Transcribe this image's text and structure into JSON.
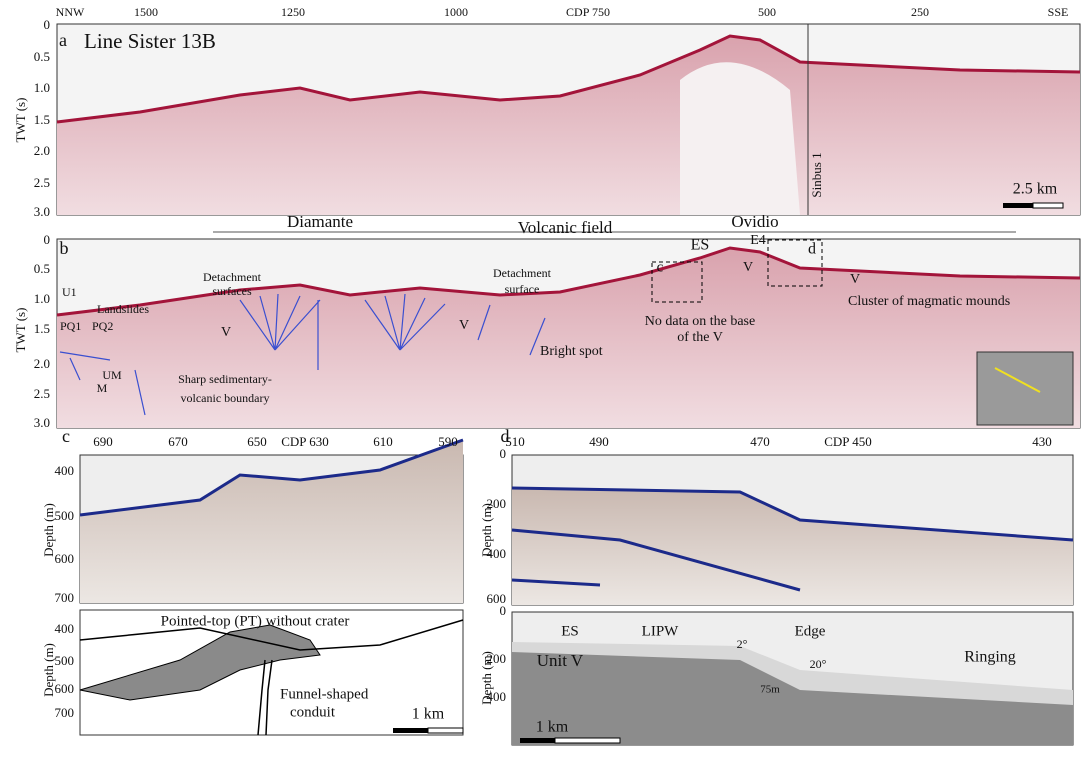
{
  "panel_a": {
    "label": "a",
    "title": "Line Sister 13B",
    "x_labels": [
      "NNW",
      "1500",
      "1250",
      "1000",
      "CDP 750",
      "500",
      "250",
      "SSE"
    ],
    "y_label": "TWT (s)",
    "y_ticks": [
      "0",
      "0.5",
      "1.0",
      "1.5",
      "2.0",
      "2.5",
      "3.0"
    ],
    "well": "Sinbus 1",
    "scale": "2.5 km"
  },
  "zones": {
    "left": "Diamante",
    "center": "Volcanic field",
    "right": "Ovidio"
  },
  "panel_b": {
    "label": "b",
    "y_label": "TWT (s)",
    "y_ticks": [
      "0",
      "0.5",
      "1.0",
      "1.5",
      "2.0",
      "2.5",
      "3.0"
    ],
    "annotations": [
      "ES",
      "E4",
      "V",
      "c",
      "d",
      "V",
      "Cluster of magmatic mounds",
      "Detachment",
      "surfaces",
      "Landslides",
      "U1",
      "PQ1",
      "PQ2",
      "V",
      "Detachment",
      "surface",
      "V",
      "No data on the base",
      "of the V",
      "Bright spot",
      "UM",
      "M",
      "Sharp sedimentary-",
      "volcanic boundary"
    ]
  },
  "panel_c": {
    "label": "c",
    "x_labels": [
      "690",
      "670",
      "650",
      "CDP 630",
      "610",
      "590"
    ],
    "y_label": "Depth (m)",
    "seismic_y_ticks": [
      "400",
      "500",
      "600",
      "700"
    ],
    "interp_y_ticks": [
      "400",
      "500",
      "600",
      "700"
    ],
    "annotations": [
      "Pointed-top (PT) without crater",
      "Funnel-shaped",
      "conduit"
    ],
    "scale": "1 km"
  },
  "panel_d": {
    "label": "d",
    "x_labels": [
      "510",
      "490",
      "470",
      "CDP 450",
      "430"
    ],
    "y_label": "Depth (m)",
    "seismic_y_ticks": [
      "0",
      "200",
      "400",
      "600"
    ],
    "interp_y_ticks": [
      "0",
      "200",
      "400"
    ],
    "annotations": [
      "ES",
      "LIPW",
      "2°",
      "Edge",
      "20°",
      "75m",
      "Unit V",
      "Ringing"
    ],
    "scale": "1 km"
  }
}
